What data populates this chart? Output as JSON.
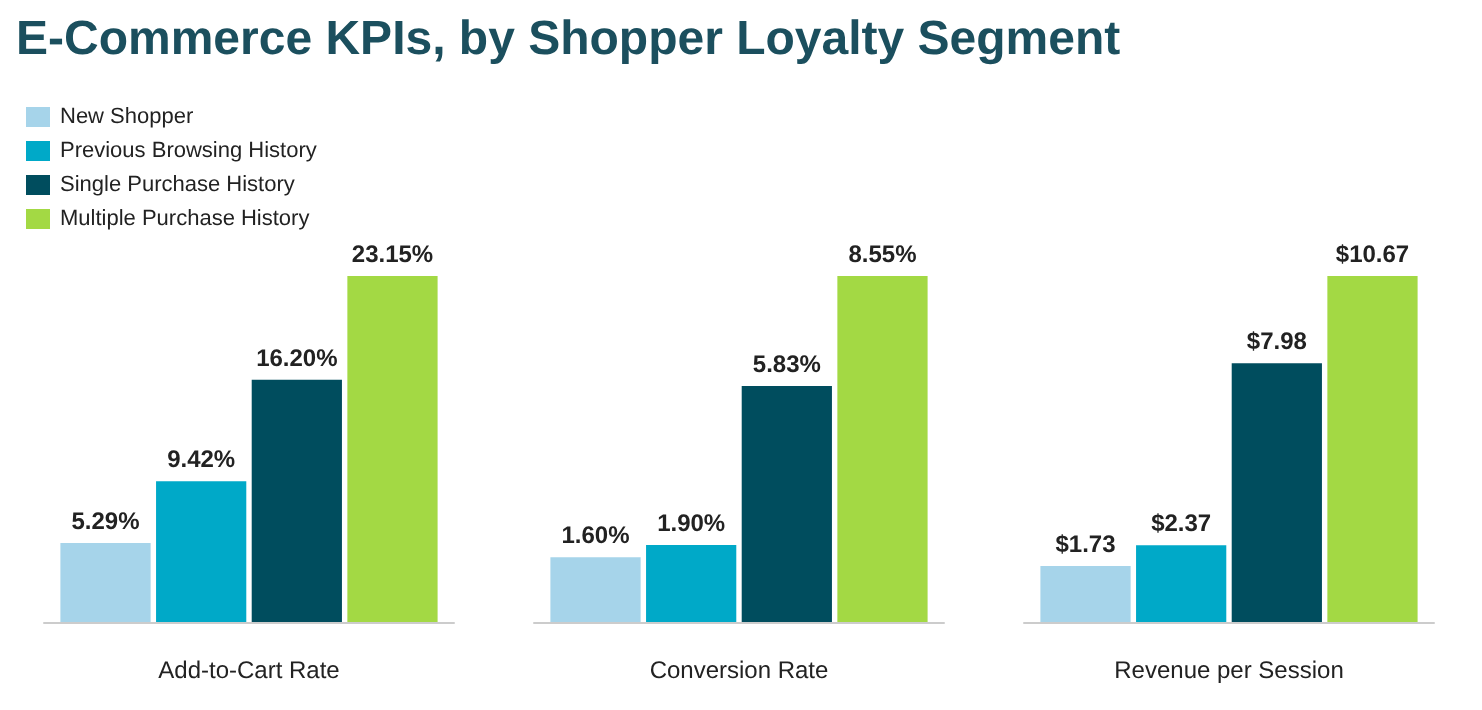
{
  "chart_data": [
    {
      "type": "bar",
      "title": "E-Commerce KPIs, by Shopper Loyalty Segment",
      "legend": "top left",
      "xlabel": "Add-to-Cart Rate",
      "categories": [
        null
      ],
      "series": [
        {
          "name": "New Shopper",
          "color": "#a6d4ea",
          "values": [
            5.29
          ],
          "value_labels": [
            "5.29%"
          ]
        },
        {
          "name": "Previous Browsing History",
          "color": "#00a9c8",
          "values": [
            9.42
          ],
          "value_labels": [
            "9.42%"
          ]
        },
        {
          "name": "Single Purchase History",
          "color": "#004d5e",
          "values": [
            16.2
          ],
          "value_labels": [
            "16.20%"
          ]
        },
        {
          "name": "Multiple Purchase History",
          "color": "#a3d944",
          "values": [
            23.15
          ],
          "value_labels": [
            "23.15%"
          ]
        }
      ]
    },
    {
      "type": "bar",
      "xlabel": "Conversion Rate",
      "categories": [
        null
      ],
      "series": [
        {
          "color": "#a6d4ea",
          "values": [
            1.6
          ],
          "value_labels": [
            "1.60%"
          ]
        },
        {
          "color": "#00a9c8",
          "values": [
            1.9
          ],
          "value_labels": [
            "1.90%"
          ]
        },
        {
          "color": "#004d5e",
          "values": [
            5.83
          ],
          "value_labels": [
            "5.83%"
          ]
        },
        {
          "color": "#a3d944",
          "values": [
            8.55
          ],
          "value_labels": [
            "8.55%"
          ]
        }
      ]
    },
    {
      "type": "bar",
      "xlabel": "Revenue per Session",
      "categories": [
        null
      ],
      "series": [
        {
          "color": "#a6d4ea",
          "values": [
            1.73
          ],
          "value_labels": [
            "$1.73"
          ]
        },
        {
          "color": "#00a9c8",
          "values": [
            2.37
          ],
          "value_labels": [
            "$2.37"
          ]
        },
        {
          "color": "#004d5e",
          "values": [
            7.98
          ],
          "value_labels": [
            "$7.98"
          ]
        },
        {
          "color": "#a3d944",
          "values": [
            10.67
          ],
          "value_labels": [
            "$10.67"
          ]
        }
      ]
    }
  ]
}
